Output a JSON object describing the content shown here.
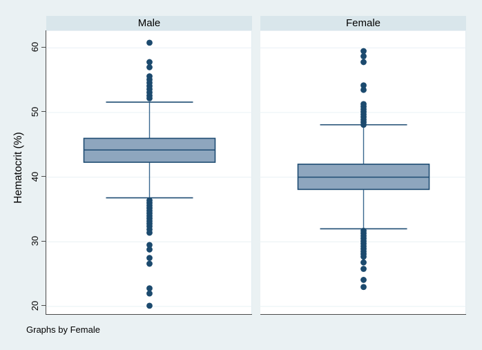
{
  "window": {
    "caption": "Graphs by Female"
  },
  "colors": {
    "background": "#eaf1f3",
    "strip_background": "#d9e6eb",
    "plot_background": "#ffffff",
    "gridline": "#e8f0f4",
    "axis_line": "#4a4a4a",
    "box_fill": "#8ea6be",
    "box_border": "#1d4b72",
    "whisker_line": "#39678f",
    "outlier_dot": "#1c4a6e"
  },
  "chart_data": {
    "type": "box",
    "ylabel": "Hematocrit (%)",
    "caption": "Graphs by Female",
    "ylim": [
      18.7,
      62.6
    ],
    "yticks": [
      20,
      30,
      40,
      50,
      60
    ],
    "grid": true,
    "legend": "none",
    "panels": [
      {
        "title": "Male",
        "stats": {
          "whisker_low": 36.8,
          "q1": 42.3,
          "median": 44.2,
          "q3": 46.0,
          "whisker_high": 51.6
        },
        "outliers_high": [
          60.8,
          57.8,
          57.0,
          55.6,
          55.1,
          54.6,
          54.1,
          53.6,
          53.1,
          52.6,
          52.2
        ],
        "outliers_low": [
          36.4,
          36.0,
          35.6,
          35.2,
          34.8,
          34.4,
          34.0,
          33.6,
          33.2,
          32.8,
          32.4,
          31.9,
          31.4,
          29.5,
          28.8,
          27.5,
          26.6,
          22.8,
          22.0,
          20.1
        ]
      },
      {
        "title": "Female",
        "stats": {
          "whisker_low": 32.0,
          "q1": 38.1,
          "median": 40.0,
          "q3": 42.0,
          "whisker_high": 48.1
        },
        "outliers_high": [
          59.5,
          58.7,
          57.8,
          54.2,
          53.5,
          51.3,
          50.9,
          50.5,
          50.1,
          49.7,
          49.3,
          48.9,
          48.5,
          48.1
        ],
        "outliers_low": [
          31.7,
          31.3,
          30.9,
          30.5,
          30.1,
          29.7,
          29.3,
          28.9,
          28.5,
          28.1,
          27.7,
          26.8,
          25.8,
          24.1,
          23.0
        ]
      }
    ]
  }
}
